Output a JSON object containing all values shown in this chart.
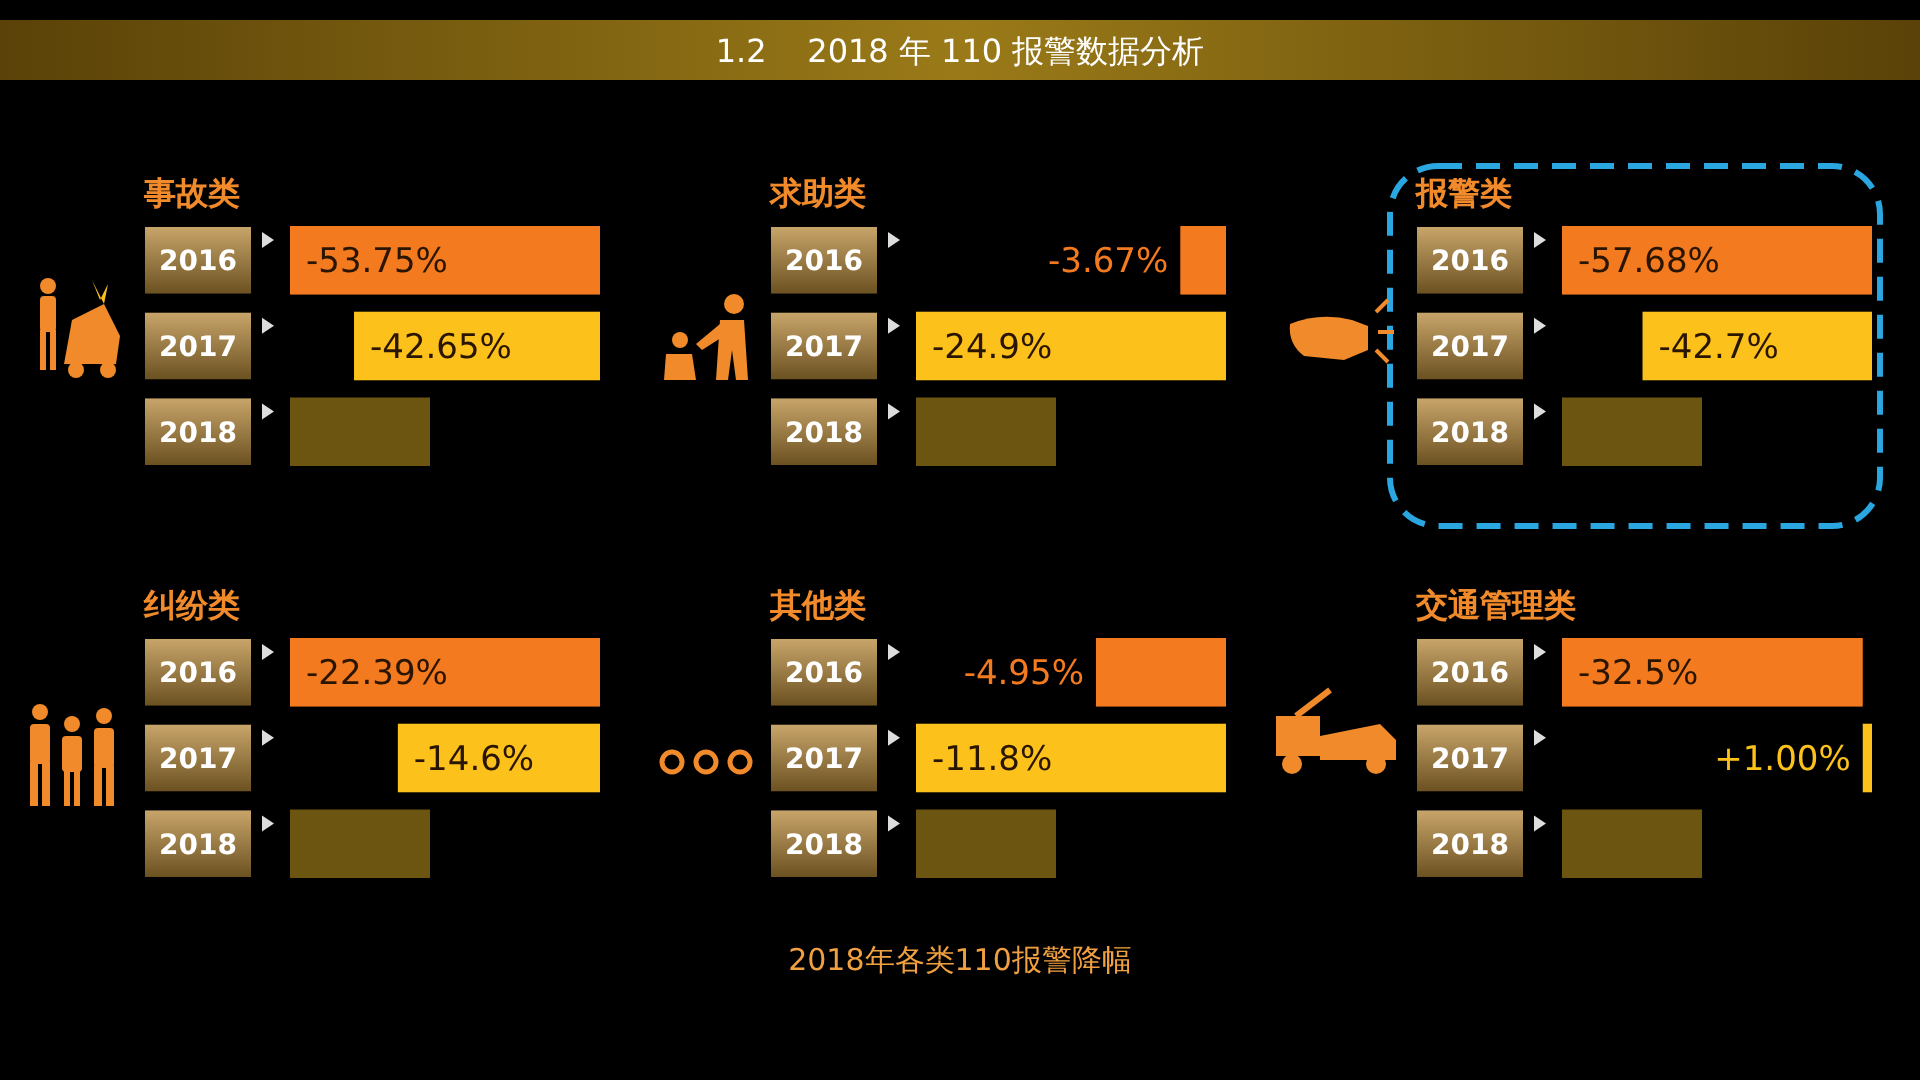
{
  "chart_data": [
    {
      "type": "bar",
      "orientation": "horizontal",
      "title": "事故类",
      "categories": [
        "2016",
        "2017",
        "2018"
      ],
      "values": [
        -53.75,
        -42.65,
        null
      ],
      "value_labels": [
        "-53.75%",
        "-42.65%",
        null
      ],
      "colors": [
        "#f47a1f",
        "#fcc21b",
        "#6b5510"
      ],
      "annotations": [
        "1.2    2018 年 110 报警数据分析",
        "2018年各类110报警降幅"
      ]
    },
    {
      "type": "bar",
      "orientation": "horizontal",
      "title": "求助类",
      "categories": [
        "2016",
        "2017",
        "2018"
      ],
      "values": [
        -3.67,
        -24.9,
        null
      ],
      "value_labels": [
        "-3.67%",
        "-24.9%",
        null
      ],
      "colors": [
        "#f47a1f",
        "#fcc21b",
        "#6b5510"
      ]
    },
    {
      "type": "bar",
      "orientation": "horizontal",
      "title": "报警类",
      "categories": [
        "2016",
        "2017",
        "2018"
      ],
      "values": [
        -57.68,
        -42.7,
        null
      ],
      "value_labels": [
        "-57.68%",
        "-42.7%",
        null
      ],
      "colors": [
        "#f47a1f",
        "#fcc21b",
        "#6b5510"
      ]
    },
    {
      "type": "bar",
      "orientation": "horizontal",
      "title": "纠纷类",
      "categories": [
        "2016",
        "2017",
        "2018"
      ],
      "values": [
        -22.39,
        -14.6,
        null
      ],
      "value_labels": [
        "-22.39%",
        "-14.6%",
        null
      ],
      "colors": [
        "#f47a1f",
        "#fcc21b",
        "#6b5510"
      ]
    },
    {
      "type": "bar",
      "orientation": "horizontal",
      "title": "其他类",
      "categories": [
        "2016",
        "2017",
        "2018"
      ],
      "values": [
        -4.95,
        -11.8,
        null
      ],
      "value_labels": [
        "-4.95%",
        "-11.8%",
        null
      ],
      "colors": [
        "#f47a1f",
        "#fcc21b",
        "#6b5510"
      ]
    },
    {
      "type": "bar",
      "orientation": "horizontal",
      "title": "交通管理类",
      "categories": [
        "2016",
        "2017",
        "2018"
      ],
      "values": [
        -32.5,
        1,
        null
      ],
      "value_labels": [
        "-32.5%",
        "+1.00%",
        null
      ],
      "colors": [
        "#f47a1f",
        "#fcc21b",
        "#6b5510"
      ]
    }
  ]
}
